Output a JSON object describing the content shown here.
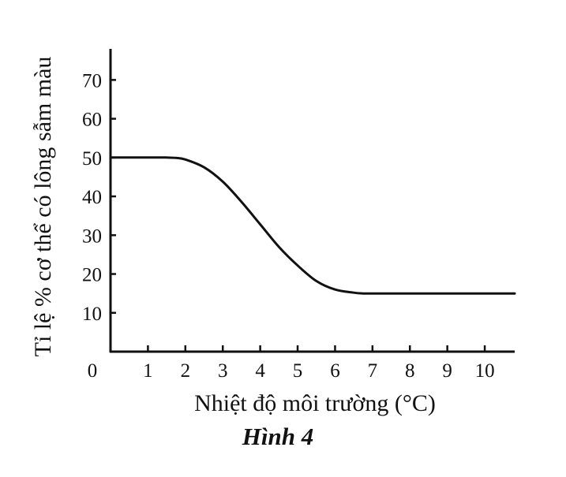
{
  "chart_data": {
    "type": "line",
    "title": "",
    "xlabel": "Nhiệt độ môi trường (°C)",
    "ylabel": "Tỉ lệ % cơ thể có lông sẫm màu",
    "origin_label": "0",
    "x_ticks": [
      1,
      2,
      3,
      4,
      5,
      6,
      7,
      8,
      9,
      10
    ],
    "y_ticks": [
      10,
      20,
      30,
      40,
      50,
      60,
      70
    ],
    "xlim": [
      0,
      10.8
    ],
    "ylim": [
      0,
      78
    ],
    "grid": false,
    "series": [
      {
        "x": [
          0,
          0.5,
          1,
          1.5,
          1.75,
          2,
          2.5,
          3,
          3.5,
          4,
          4.5,
          5,
          5.5,
          6,
          6.5,
          6.75,
          7,
          8,
          9,
          10,
          10.8
        ],
        "y": [
          50,
          50,
          50,
          50,
          49.9,
          49.5,
          47.5,
          43.8,
          38.6,
          32.8,
          27,
          22.2,
          18.2,
          16,
          15.2,
          15,
          15,
          15,
          15,
          15,
          15
        ]
      }
    ],
    "colors": {
      "line": "#111111",
      "axis": "#111111"
    }
  },
  "caption": "Hình 4"
}
